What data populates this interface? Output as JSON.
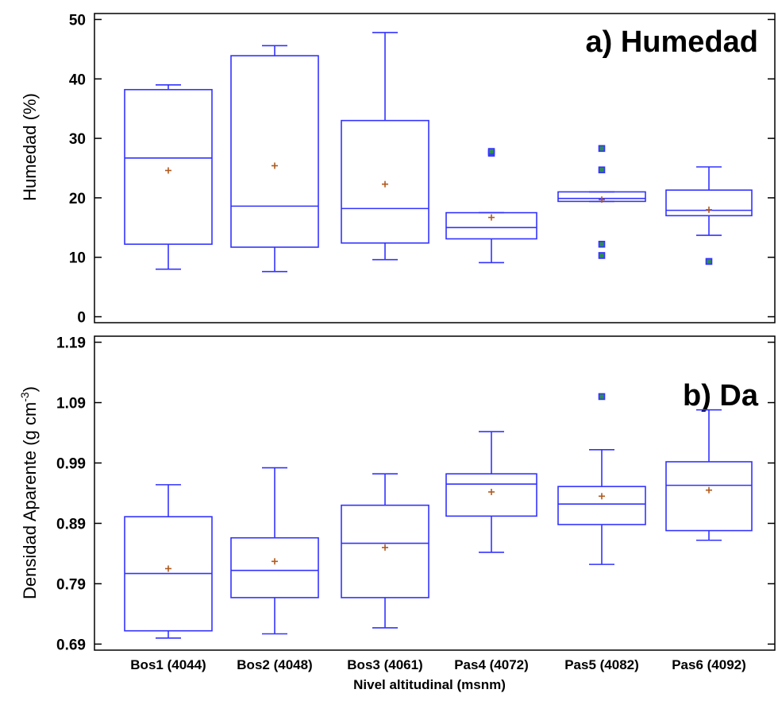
{
  "chart_data": [
    {
      "type": "boxplot",
      "title": "a) Humedad",
      "ylabel": "Humedad (%)",
      "ylim": [
        -1,
        51
      ],
      "yticks": [
        0,
        10,
        20,
        30,
        40,
        50
      ],
      "ytick_labels": [
        "0",
        "10",
        "20",
        "30",
        "40",
        "50"
      ],
      "categories": [
        "Bos1 (4044)",
        "Bos2 (4048)",
        "Bos3 (4061)",
        "Pas4 (4072)",
        "Pas5 (4082)",
        "Pas6 (4092)"
      ],
      "boxes": [
        {
          "whisker_low": 8.0,
          "q1": 12.2,
          "median": 26.7,
          "q3": 38.2,
          "whisker_high": 39.0,
          "mean": 24.6,
          "outliers": []
        },
        {
          "whisker_low": 7.6,
          "q1": 11.7,
          "median": 18.6,
          "q3": 43.9,
          "whisker_high": 45.6,
          "mean": 25.4,
          "outliers": []
        },
        {
          "whisker_low": 9.6,
          "q1": 12.4,
          "median": 18.2,
          "q3": 33.0,
          "whisker_high": 47.8,
          "mean": 22.3,
          "outliers": []
        },
        {
          "whisker_low": 9.1,
          "q1": 13.1,
          "median": 15.0,
          "q3": 17.5,
          "whisker_high": 17.5,
          "mean": 16.7,
          "outliers": [
            27.5,
            27.8
          ]
        },
        {
          "whisker_low": 19.4,
          "q1": 19.4,
          "median": 19.9,
          "q3": 21.0,
          "whisker_high": 21.0,
          "mean": 19.7,
          "outliers": [
            28.3,
            24.7,
            12.2,
            10.3
          ]
        },
        {
          "whisker_low": 13.7,
          "q1": 17.0,
          "median": 17.9,
          "q3": 21.3,
          "whisker_high": 25.2,
          "mean": 18.0,
          "outliers": [
            9.3
          ]
        }
      ]
    },
    {
      "type": "boxplot",
      "title": "b) Da",
      "ylabel": "Densidad Aparente (g cm-3)",
      "ylabel_main": "Densidad Aparente (g cm",
      "ylabel_sup": "-3",
      "ylabel_end": ")",
      "xlabel": "Nivel altitudinal (msnm)",
      "ylim": [
        0.68,
        1.2
      ],
      "yticks": [
        0.69,
        0.79,
        0.89,
        0.99,
        1.09,
        1.19
      ],
      "ytick_labels": [
        "0.69",
        "0.79",
        "0.89",
        "0.99",
        "1.09",
        "1.19"
      ],
      "categories": [
        "Bos1 (4044)",
        "Bos2 (4048)",
        "Bos3 (4061)",
        "Pas4 (4072)",
        "Pas5 (4082)",
        "Pas6 (4092)"
      ],
      "boxes": [
        {
          "whisker_low": 0.7,
          "q1": 0.712,
          "median": 0.807,
          "q3": 0.901,
          "whisker_high": 0.954,
          "mean": 0.815,
          "outliers": []
        },
        {
          "whisker_low": 0.707,
          "q1": 0.767,
          "median": 0.812,
          "q3": 0.866,
          "whisker_high": 0.982,
          "mean": 0.827,
          "outliers": []
        },
        {
          "whisker_low": 0.717,
          "q1": 0.767,
          "median": 0.857,
          "q3": 0.92,
          "whisker_high": 0.972,
          "mean": 0.85,
          "outliers": []
        },
        {
          "whisker_low": 0.842,
          "q1": 0.902,
          "median": 0.955,
          "q3": 0.972,
          "whisker_high": 1.042,
          "mean": 0.942,
          "outliers": []
        },
        {
          "whisker_low": 0.822,
          "q1": 0.888,
          "median": 0.922,
          "q3": 0.951,
          "whisker_high": 1.012,
          "mean": 0.935,
          "outliers": [
            1.1
          ]
        },
        {
          "whisker_low": 0.862,
          "q1": 0.878,
          "median": 0.953,
          "q3": 0.992,
          "whisker_high": 1.078,
          "mean": 0.945,
          "outliers": []
        }
      ]
    }
  ],
  "colors": {
    "box": "#3333ff",
    "mean": "#b05a1e",
    "outlier_edge": "#3333ff",
    "outlier_fill": "#2e8b57",
    "axis": "#000000"
  }
}
